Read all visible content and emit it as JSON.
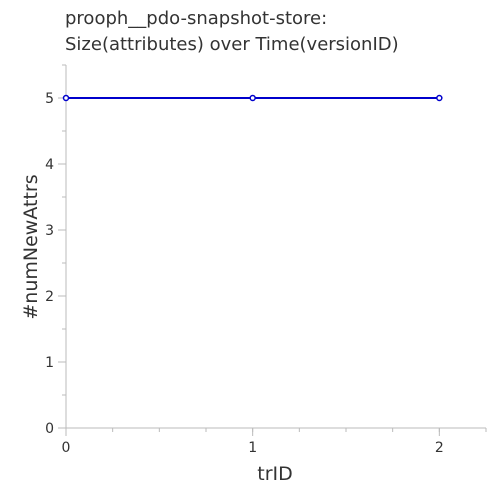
{
  "chart_data": {
    "type": "line",
    "title_lines": [
      "prooph__pdo-snapshot-store:",
      "Size(attributes) over Time(versionID)"
    ],
    "xlabel": "trID",
    "ylabel": "#numNewAttrs",
    "x": [
      0,
      1,
      2
    ],
    "series": [
      {
        "values": [
          5,
          5,
          5
        ]
      }
    ],
    "xlim": [
      0,
      2.25
    ],
    "ylim": [
      0,
      5.5
    ],
    "x_major_ticks": [
      0,
      1,
      2
    ],
    "x_minor_step": 0.25,
    "y_major_ticks": [
      0,
      1,
      2,
      3,
      4,
      5
    ],
    "y_minor_step": 0.5,
    "grid": false,
    "line_color": "#0000cc",
    "axis_color": "#bbbbbb",
    "text_color": "#333333"
  }
}
